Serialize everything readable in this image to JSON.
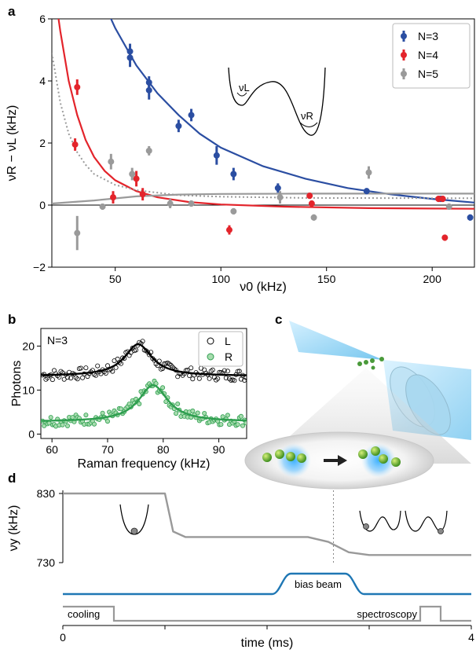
{
  "panels": {
    "a": "a",
    "b": "b",
    "c": "c",
    "d": "d"
  },
  "colors": {
    "n3": "#2b4ea2",
    "n4": "#e3242b",
    "n5": "#9a9a9a",
    "L": "#000000",
    "R": "#2e9e4f",
    "bias": "#1f77b4",
    "trace": "#999999"
  },
  "chart_data": [
    {
      "id": "a",
      "type": "scatter",
      "xlabel": "ν0 (kHz)",
      "ylabel": "νR − νL (kHz)",
      "xlim": [
        20,
        220
      ],
      "ylim": [
        -2,
        6
      ],
      "xticks": [
        50,
        100,
        150,
        200
      ],
      "yticks": [
        -2,
        0,
        2,
        4,
        6
      ],
      "legend": "top-right",
      "inset_labels": {
        "left": "νL",
        "right": "νR"
      },
      "series": [
        {
          "name": "N=3",
          "color": "#2b4ea2",
          "points": [
            [
              57,
              4.95,
              0.25
            ],
            [
              57,
              4.75,
              0.3
            ],
            [
              66,
              3.95,
              0.2
            ],
            [
              66,
              3.7,
              0.3
            ],
            [
              80,
              2.55,
              0.2
            ],
            [
              86,
              2.9,
              0.2
            ],
            [
              98,
              1.6,
              0.3
            ],
            [
              106,
              1.0,
              0.2
            ],
            [
              127,
              0.55,
              0.15
            ],
            [
              169,
              0.45,
              0.1
            ],
            [
              204,
              0.2,
              0.1
            ],
            [
              218,
              -0.4,
              0.1
            ]
          ],
          "fit": [
            [
              20,
              9.5
            ],
            [
              30,
              8.8
            ],
            [
              40,
              7.2
            ],
            [
              50,
              5.7
            ],
            [
              60,
              4.5
            ],
            [
              70,
              3.6
            ],
            [
              80,
              2.9
            ],
            [
              90,
              2.3
            ],
            [
              100,
              1.85
            ],
            [
              120,
              1.25
            ],
            [
              140,
              0.85
            ],
            [
              160,
              0.55
            ],
            [
              180,
              0.35
            ],
            [
              200,
              0.2
            ],
            [
              220,
              0.08
            ]
          ]
        },
        {
          "name": "N=4",
          "color": "#e3242b",
          "points": [
            [
              32,
              3.8,
              0.25
            ],
            [
              31,
              1.95,
              0.2
            ],
            [
              49,
              0.25,
              0.2
            ],
            [
              60,
              0.85,
              0.25
            ],
            [
              63,
              0.35,
              0.2
            ],
            [
              104,
              -0.8,
              0.15
            ],
            [
              142,
              0.3,
              0.1
            ],
            [
              143,
              0.05,
              0.1
            ],
            [
              203,
              0.2,
              0.1
            ],
            [
              205,
              0.2,
              0.1
            ],
            [
              206,
              -1.05,
              0.1
            ]
          ],
          "fit": [
            [
              20,
              7.5
            ],
            [
              24,
              5.6
            ],
            [
              28,
              4.0
            ],
            [
              32,
              2.9
            ],
            [
              36,
              2.1
            ],
            [
              40,
              1.55
            ],
            [
              45,
              1.1
            ],
            [
              50,
              0.8
            ],
            [
              60,
              0.45
            ],
            [
              70,
              0.25
            ],
            [
              85,
              0.1
            ],
            [
              100,
              0.02
            ],
            [
              130,
              -0.05
            ],
            [
              170,
              -0.1
            ],
            [
              220,
              -0.12
            ]
          ]
        },
        {
          "name": "N=5",
          "color": "#9a9a9a",
          "points": [
            [
              32,
              -0.9,
              0.55
            ],
            [
              44,
              -0.05,
              0.1
            ],
            [
              48,
              1.4,
              0.25
            ],
            [
              58,
              1.0,
              0.2
            ],
            [
              66,
              1.75,
              0.15
            ],
            [
              76,
              0.05,
              0.15
            ],
            [
              86,
              0.05,
              0.1
            ],
            [
              106,
              -0.2,
              0.1
            ],
            [
              128,
              0.25,
              0.2
            ],
            [
              144,
              -0.4,
              0.1
            ],
            [
              170,
              1.05,
              0.2
            ],
            [
              208,
              -0.05,
              0.1
            ]
          ],
          "fit": [
            [
              20,
              0.05
            ],
            [
              40,
              0.15
            ],
            [
              60,
              0.28
            ],
            [
              80,
              0.34
            ],
            [
              100,
              0.36
            ],
            [
              140,
              0.37
            ],
            [
              220,
              0.37
            ]
          ],
          "dotted_fit": [
            [
              20,
              4.9
            ],
            [
              24,
              3.3
            ],
            [
              28,
              2.3
            ],
            [
              32,
              1.7
            ],
            [
              36,
              1.3
            ],
            [
              40,
              1.0
            ],
            [
              50,
              0.65
            ],
            [
              60,
              0.48
            ],
            [
              80,
              0.32
            ],
            [
              100,
              0.27
            ],
            [
              140,
              0.23
            ],
            [
              220,
              0.22
            ]
          ]
        }
      ]
    },
    {
      "id": "b",
      "type": "scatter",
      "xlabel": "Raman frequency (kHz)",
      "ylabel": "Photons",
      "annotation": "N=3",
      "xlim": [
        58,
        95
      ],
      "ylim": [
        -1,
        24
      ],
      "xticks": [
        60,
        70,
        80,
        90
      ],
      "yticks": [
        0,
        10,
        20
      ],
      "legend": "top-right",
      "series": [
        {
          "name": "L",
          "color": "#000000",
          "center": 75.5,
          "base": 13.2,
          "amp": 7.2,
          "width": 3.0
        },
        {
          "name": "R",
          "color": "#2e9e4f",
          "center": 78.2,
          "base": 2.8,
          "amp": 8.3,
          "width": 3.2
        }
      ]
    },
    {
      "id": "d",
      "type": "line",
      "xlabel": "time (ms)",
      "ylabel": "νy (kHz)",
      "xlim": [
        0,
        4
      ],
      "xtick_labels": [
        "0",
        "4"
      ],
      "yticks": [
        730,
        830
      ],
      "ylim": [
        730,
        830
      ],
      "trap_trace": [
        [
          0,
          830
        ],
        [
          1.0,
          830
        ],
        [
          1.08,
          775
        ],
        [
          1.2,
          767
        ],
        [
          2.4,
          767
        ],
        [
          2.6,
          760
        ],
        [
          2.8,
          745
        ],
        [
          3.0,
          741
        ],
        [
          4.0,
          741
        ]
      ],
      "dotted_time": 2.65,
      "bias_beam": {
        "label": "bias beam",
        "on": 2.05,
        "off": 2.95
      },
      "cooling": {
        "label": "cooling",
        "on": 0.0,
        "off": 0.5
      },
      "spectroscopy": {
        "label": "spectroscopy",
        "on": 3.5,
        "off": 3.7
      }
    }
  ]
}
